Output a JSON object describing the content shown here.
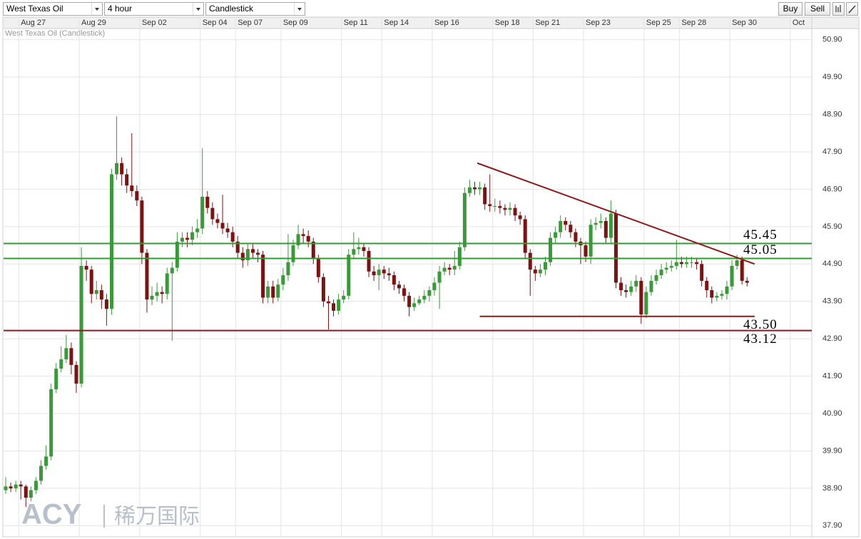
{
  "toolbar": {
    "symbol": "West Texas Oil",
    "interval": "4 hour",
    "chart_type": "Candlestick",
    "buy": "Buy",
    "sell": "Sell"
  },
  "watermark": {
    "brand": "ACY",
    "name": "稀万国际"
  },
  "chart_data": {
    "type": "candlestick",
    "title": "West Texas Oil (Candlestick)",
    "up_color": "#3a9a3a",
    "down_color": "#7d1212",
    "grid": true,
    "ylim": [
      37.62,
      51.2
    ],
    "yticks": [
      {
        "value": 50.9,
        "label": "50.90"
      },
      {
        "value": 49.9,
        "label": "49.90"
      },
      {
        "value": 48.9,
        "label": "48.90"
      },
      {
        "value": 47.9,
        "label": "47.90"
      },
      {
        "value": 46.9,
        "label": "46.90"
      },
      {
        "value": 45.9,
        "label": "45.90"
      },
      {
        "value": 44.9,
        "label": "44.90"
      },
      {
        "value": 43.9,
        "label": "43.90"
      },
      {
        "value": 42.9,
        "label": "42.90"
      },
      {
        "value": 41.9,
        "label": "41.90"
      },
      {
        "value": 40.9,
        "label": "40.90"
      },
      {
        "value": 39.9,
        "label": "39.90"
      },
      {
        "value": 38.9,
        "label": "38.90"
      },
      {
        "value": 37.9,
        "label": "37.90"
      }
    ],
    "categories": [
      null,
      null,
      null,
      "Aug 27",
      null,
      null,
      null,
      null,
      null,
      null,
      null,
      null,
      null,
      null,
      null,
      "Aug 29",
      null,
      null,
      null,
      null,
      null,
      null,
      null,
      null,
      null,
      null,
      null,
      "Sep 02",
      null,
      null,
      null,
      null,
      null,
      null,
      null,
      null,
      null,
      null,
      null,
      "Sep 04",
      null,
      null,
      null,
      null,
      null,
      null,
      "Sep 07",
      null,
      null,
      null,
      null,
      null,
      null,
      null,
      null,
      "Sep 09",
      null,
      null,
      null,
      null,
      null,
      null,
      null,
      null,
      null,
      null,
      null,
      "Sep 11",
      null,
      null,
      null,
      null,
      null,
      null,
      null,
      "Sep 14",
      null,
      null,
      null,
      null,
      null,
      null,
      null,
      null,
      null,
      "Sep 16",
      null,
      null,
      null,
      null,
      null,
      null,
      null,
      null,
      null,
      null,
      null,
      "Sep 18",
      null,
      null,
      null,
      null,
      null,
      null,
      null,
      "Sep 21",
      null,
      null,
      null,
      null,
      null,
      null,
      null,
      null,
      null,
      "Sep 23",
      null,
      null,
      null,
      null,
      null,
      null,
      null,
      null,
      null,
      null,
      null,
      "Sep 25",
      null,
      null,
      null,
      null,
      null,
      null,
      "Sep 28",
      null,
      null,
      null,
      null,
      null,
      null,
      null,
      null,
      null,
      "Sep 30",
      null,
      null,
      null,
      null,
      null,
      null,
      null,
      null,
      null,
      null,
      null,
      "Oct"
    ],
    "open": [
      38.85,
      38.95,
      38.9,
      39.0,
      38.95,
      38.65,
      38.85,
      39.1,
      39.5,
      39.75,
      41.55,
      42.1,
      42.35,
      42.65,
      42.2,
      41.7,
      44.85,
      44.75,
      44.1,
      44.2,
      43.95,
      43.7,
      47.3,
      47.6,
      47.3,
      47.0,
      46.85,
      46.6,
      45.2,
      43.95,
      44.05,
      44.15,
      44.1,
      44.65,
      44.8,
      45.5,
      45.6,
      45.55,
      45.75,
      45.85,
      46.7,
      46.4,
      46.1,
      46.0,
      45.85,
      45.75,
      45.5,
      45.2,
      45.0,
      45.3,
      45.2,
      45.15,
      44.0,
      44.3,
      44.0,
      44.35,
      44.6,
      44.95,
      45.4,
      45.7,
      45.65,
      45.5,
      45.05,
      44.55,
      43.9,
      43.85,
      43.65,
      43.95,
      44.05,
      45.15,
      45.3,
      45.35,
      45.25,
      44.7,
      44.6,
      44.75,
      44.65,
      44.6,
      44.35,
      44.25,
      44.05,
      43.75,
      43.85,
      43.95,
      44.05,
      44.2,
      44.4,
      44.7,
      44.8,
      44.75,
      44.85,
      45.35,
      46.8,
      46.95,
      46.9,
      46.95,
      46.5,
      46.45,
      46.45,
      46.4,
      46.35,
      46.4,
      46.2,
      46.1,
      45.2,
      44.75,
      44.65,
      44.75,
      44.95,
      45.6,
      45.75,
      46.05,
      45.95,
      45.75,
      45.5,
      45.4,
      45.1,
      45.95,
      46.0,
      46.05,
      45.6,
      46.25,
      44.4,
      44.2,
      44.15,
      44.3,
      44.45,
      43.55,
      44.15,
      44.45,
      44.6,
      44.75,
      44.8,
      44.85,
      44.95,
      44.9,
      44.95,
      44.95,
      44.9,
      44.45,
      44.2,
      44.0,
      44.05,
      44.1,
      44.3,
      44.85,
      45.0,
      44.45,
      null,
      null,
      null,
      null,
      null,
      null,
      null,
      null,
      null
    ],
    "high": [
      39.2,
      39.05,
      39.1,
      39.1,
      39.0,
      38.95,
      39.2,
      39.65,
      40.05,
      41.7,
      42.25,
      42.7,
      43.0,
      42.8,
      42.3,
      45.35,
      45.0,
      44.85,
      44.45,
      44.35,
      44.1,
      47.45,
      48.85,
      47.75,
      47.45,
      48.4,
      47.0,
      46.7,
      45.3,
      44.3,
      44.4,
      44.3,
      44.8,
      44.95,
      45.75,
      45.75,
      45.75,
      45.9,
      46.1,
      48.0,
      46.85,
      46.55,
      46.25,
      46.75,
      46.0,
      45.9,
      45.65,
      45.35,
      45.45,
      45.45,
      45.3,
      45.25,
      44.45,
      44.45,
      44.5,
      44.8,
      45.7,
      45.55,
      45.95,
      45.85,
      45.8,
      45.6,
      45.15,
      44.65,
      44.05,
      43.95,
      44.1,
      44.2,
      45.3,
      45.75,
      45.6,
      45.45,
      45.35,
      44.85,
      44.9,
      44.85,
      44.8,
      44.7,
      44.45,
      44.35,
      44.15,
      44.0,
      44.05,
      44.2,
      44.3,
      44.55,
      44.85,
      44.95,
      44.9,
      45.25,
      45.5,
      46.95,
      47.15,
      47.1,
      47.1,
      47.05,
      47.3,
      46.65,
      46.6,
      46.5,
      46.55,
      46.5,
      46.3,
      46.2,
      45.3,
      44.85,
      44.9,
      45.1,
      45.75,
      45.9,
      46.2,
      46.15,
      46.05,
      45.85,
      45.6,
      45.5,
      46.1,
      46.15,
      46.25,
      46.15,
      46.6,
      46.35,
      44.55,
      44.35,
      44.45,
      44.6,
      44.55,
      44.3,
      44.6,
      44.75,
      44.9,
      44.95,
      45.0,
      45.55,
      45.1,
      45.1,
      45.1,
      45.05,
      45.0,
      44.55,
      44.3,
      44.15,
      44.2,
      44.45,
      45.0,
      45.15,
      45.1,
      44.55,
      null,
      null,
      null,
      null,
      null,
      null,
      null,
      null,
      null
    ],
    "low": [
      38.75,
      38.8,
      38.8,
      38.6,
      38.4,
      38.55,
      38.75,
      39.0,
      39.4,
      39.65,
      41.45,
      42.0,
      42.25,
      41.95,
      41.45,
      41.6,
      44.45,
      43.85,
      43.95,
      43.7,
      43.25,
      43.55,
      47.15,
      47.0,
      46.8,
      46.7,
      46.45,
      44.9,
      43.6,
      43.8,
      43.9,
      43.85,
      43.95,
      42.85,
      44.7,
      45.35,
      45.35,
      45.4,
      45.6,
      45.7,
      46.25,
      45.95,
      45.85,
      45.7,
      45.6,
      45.35,
      45.05,
      44.8,
      44.85,
      45.05,
      44.95,
      43.85,
      43.85,
      43.85,
      43.9,
      44.2,
      44.45,
      44.85,
      45.3,
      45.45,
      45.35,
      44.9,
      44.4,
      43.75,
      43.15,
      43.5,
      43.55,
      43.85,
      43.95,
      45.05,
      45.15,
      45.1,
      44.55,
      44.45,
      44.2,
      44.5,
      44.45,
      44.2,
      44.1,
      43.9,
      43.5,
      43.65,
      43.8,
      43.85,
      43.9,
      44.05,
      43.7,
      44.6,
      44.6,
      44.6,
      44.75,
      45.25,
      46.7,
      46.75,
      46.75,
      46.35,
      46.3,
      46.3,
      46.25,
      46.2,
      46.2,
      46.05,
      45.95,
      45.05,
      44.05,
      44.45,
      44.55,
      44.6,
      44.85,
      45.45,
      45.6,
      45.8,
      45.6,
      45.35,
      44.9,
      44.95,
      44.9,
      45.8,
      45.85,
      45.45,
      45.45,
      44.25,
      44.05,
      44.0,
      44.05,
      44.15,
      43.3,
      43.45,
      44.05,
      44.35,
      44.5,
      44.65,
      44.7,
      44.75,
      44.8,
      44.8,
      44.8,
      44.75,
      44.3,
      44.0,
      43.85,
      43.9,
      43.95,
      43.95,
      44.2,
      44.75,
      44.35,
      44.3,
      null,
      null,
      null,
      null,
      null,
      null,
      null,
      null,
      null
    ],
    "close": [
      38.95,
      38.9,
      39.0,
      38.95,
      38.65,
      38.85,
      39.1,
      39.5,
      39.75,
      41.55,
      42.1,
      42.35,
      42.65,
      42.2,
      41.7,
      44.85,
      44.75,
      44.1,
      44.2,
      43.95,
      43.7,
      47.3,
      47.6,
      47.3,
      47.0,
      46.85,
      46.6,
      45.2,
      43.95,
      44.05,
      44.15,
      44.1,
      44.65,
      44.8,
      45.5,
      45.6,
      45.55,
      45.75,
      45.85,
      46.7,
      46.4,
      46.1,
      46.0,
      45.85,
      45.75,
      45.5,
      45.2,
      45.0,
      45.3,
      45.2,
      45.15,
      44.0,
      44.3,
      44.0,
      44.35,
      44.6,
      44.95,
      45.4,
      45.7,
      45.65,
      45.5,
      45.05,
      44.55,
      43.9,
      43.85,
      43.65,
      43.95,
      44.05,
      45.15,
      45.3,
      45.35,
      45.25,
      44.7,
      44.6,
      44.75,
      44.65,
      44.6,
      44.35,
      44.25,
      44.05,
      43.75,
      43.85,
      43.95,
      44.05,
      44.2,
      44.4,
      44.7,
      44.8,
      44.75,
      44.85,
      45.35,
      46.8,
      46.95,
      46.9,
      46.95,
      46.5,
      46.45,
      46.45,
      46.4,
      46.35,
      46.4,
      46.2,
      46.1,
      45.2,
      44.75,
      44.65,
      44.75,
      44.95,
      45.6,
      45.75,
      46.05,
      45.95,
      45.75,
      45.5,
      45.4,
      45.1,
      45.95,
      46.0,
      46.05,
      45.6,
      46.25,
      44.4,
      44.2,
      44.15,
      44.3,
      44.45,
      43.55,
      44.15,
      44.45,
      44.6,
      44.75,
      44.8,
      44.85,
      44.95,
      44.9,
      44.95,
      44.95,
      44.9,
      44.45,
      44.2,
      44.0,
      44.05,
      44.1,
      44.3,
      44.85,
      45.0,
      44.45,
      44.4,
      null,
      null,
      null,
      null,
      null,
      null,
      null,
      null,
      null
    ],
    "levels": [
      {
        "value": 45.45,
        "label": "45.45",
        "color": "#2f9e2f",
        "label_side": "above"
      },
      {
        "value": 45.05,
        "label": "45.05",
        "color": "#2f9e2f",
        "label_side": "above"
      },
      {
        "value": 43.5,
        "label": "43.50",
        "color": "#8e1a1a",
        "label_side": "below",
        "x": [
          94,
          148.5
        ]
      },
      {
        "value": 43.12,
        "label": "43.12",
        "color": "#8e1a1a",
        "label_side": "below"
      }
    ],
    "trendline": {
      "x": [
        93.5,
        148.5
      ],
      "values": [
        47.6,
        44.9
      ],
      "color": "#8e1a1a"
    }
  }
}
